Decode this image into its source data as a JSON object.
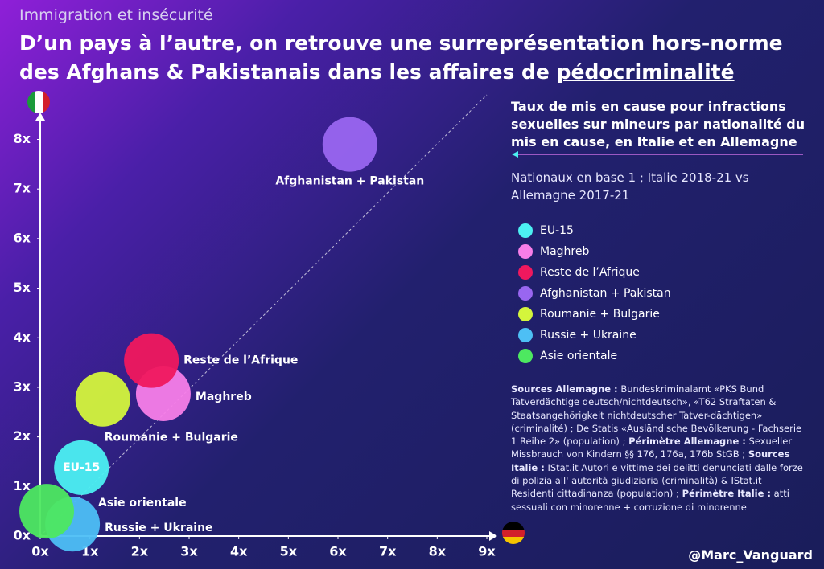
{
  "header": "Immigration et insécurité",
  "title": "D’un pays à l’autre, on retrouve une surreprésentation hors-norme des Afghans & Pakistanais dans les affaires de ",
  "title_emphasis": "pédocriminalité",
  "chart_data": {
    "type": "scatter",
    "panel_title": "Taux de mis en cause pour infractions sexuelles sur mineurs par nationalité du mis en cause, en Italie et en Allemagne",
    "subtitle": "Nationaux en base 1 ; Italie 2018-21 vs Allemagne 2017-21",
    "xlim": [
      0,
      9
    ],
    "ylim": [
      0,
      8.9
    ],
    "xticks": [
      {
        "value": 0,
        "label": "0x"
      },
      {
        "value": 1,
        "label": "1x"
      },
      {
        "value": 2,
        "label": "2x"
      },
      {
        "value": 3,
        "label": "3x"
      },
      {
        "value": 4,
        "label": "4x"
      },
      {
        "value": 5,
        "label": "5x"
      },
      {
        "value": 6,
        "label": "6x"
      },
      {
        "value": 7,
        "label": "7x"
      },
      {
        "value": 8,
        "label": "8x"
      },
      {
        "value": 9,
        "label": "9x"
      }
    ],
    "yticks": [
      {
        "value": 0,
        "label": "0x"
      },
      {
        "value": 1,
        "label": "1x"
      },
      {
        "value": 2,
        "label": "2x"
      },
      {
        "value": 3,
        "label": "3x"
      },
      {
        "value": 4,
        "label": "4x"
      },
      {
        "value": 5,
        "label": "5x"
      },
      {
        "value": 6,
        "label": "6x"
      },
      {
        "value": 7,
        "label": "7x"
      },
      {
        "value": 8,
        "label": "8x"
      }
    ],
    "series": [
      {
        "name": "EU-15",
        "color": "#4cf0f2",
        "x": [
          0.83
        ],
        "values": [
          1.38
        ]
      },
      {
        "name": "Maghreb",
        "color": "#f77ee8",
        "x": [
          2.48
        ],
        "values": [
          2.87
        ]
      },
      {
        "name": "Reste de l’Afrique",
        "color": "#f0185e",
        "x": [
          2.24
        ],
        "values": [
          3.54
        ]
      },
      {
        "name": "Afghanistan + Pakistan",
        "color": "#9966f0",
        "x": [
          6.24
        ],
        "values": [
          7.9
        ]
      },
      {
        "name": "Roumanie + Bulgarie",
        "color": "#d4f53c",
        "x": [
          1.26
        ],
        "values": [
          2.76
        ]
      },
      {
        "name": "Russie + Ukraine",
        "color": "#4dbff5",
        "x": [
          0.65
        ],
        "values": [
          0.24
        ]
      },
      {
        "name": "Asie orientale",
        "color": "#4de860",
        "x": [
          0.13
        ],
        "values": [
          0.5
        ]
      }
    ]
  },
  "sources": [
    {
      "label": "Sources Allemagne :",
      "text": "Bundeskriminalamt «PKS Bund Tatverdächtige deutsch/nichtdeutsch», «T62 Straftaten & Staatsangehörigkeit nichtdeutscher Tatver-dächtigen» (criminalité) ; De Statis «Ausländische Bevölkerung - Fachserie 1 Reihe 2» (population) ;"
    },
    {
      "label": "Périmètre Allemagne :",
      "text": "Sexueller Missbrauch von Kindern §§ 176, 176a, 176b StGB ;"
    },
    {
      "label": "Sources Italie :",
      "text": "IStat.it Autori e vittime dei delitti denunciati dalle forze di polizia all' autorità giudiziaria (criminalità) & IStat.it Residenti cittadinanza (population) ;"
    },
    {
      "label": "Périmètre Italie :",
      "text": "atti sessuali con minorenne + corruzione di minorenne"
    }
  ],
  "handle": "@Marc_Vanguard"
}
